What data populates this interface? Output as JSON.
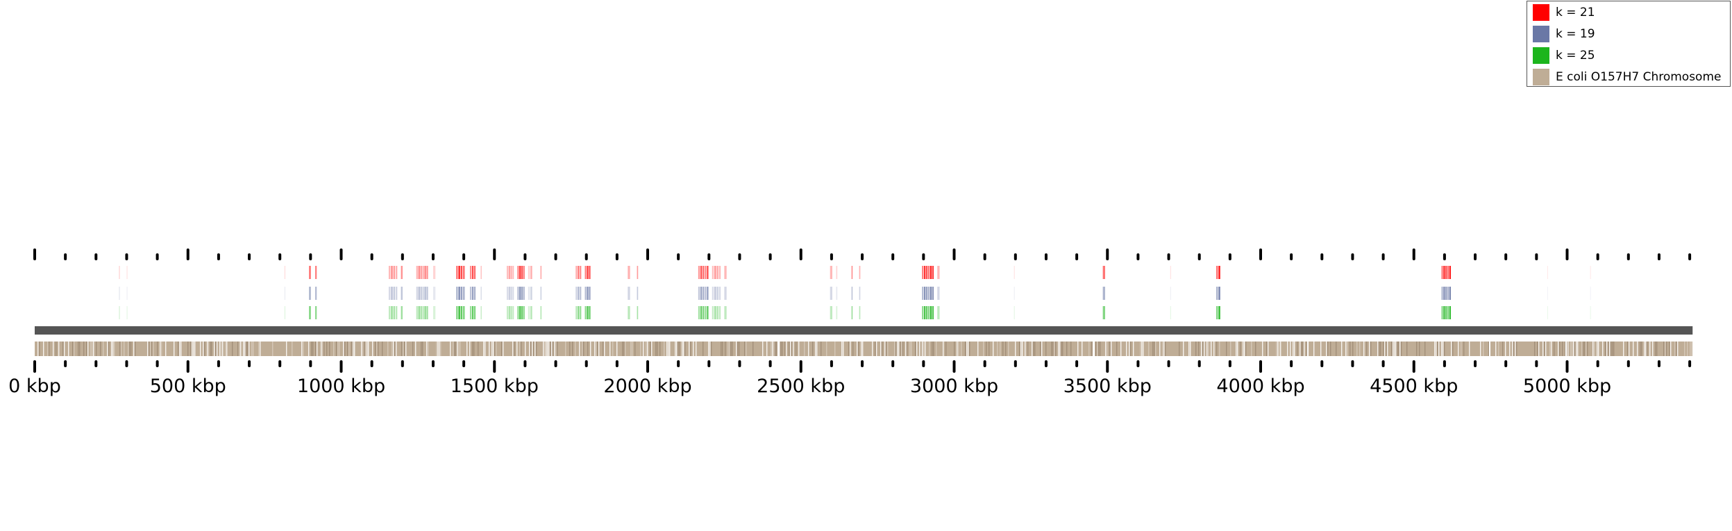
{
  "chart_data": {
    "type": "genome-track",
    "title": "",
    "xlabel": "",
    "ylabel": "",
    "xlim": [
      0,
      5500
    ],
    "axis_unit": "kbp",
    "major_tick_step": 500,
    "minor_tick_step": 100,
    "tick_labels": [
      "0 kbp",
      "500 kbp",
      "1000 kbp",
      "1500 kbp",
      "2000 kbp",
      "2500 kbp",
      "3000 kbp",
      "3500 kbp",
      "4000 kbp",
      "4500 kbp",
      "5000 kbp"
    ],
    "legend_position": "top-right",
    "legend": [
      {
        "label": "k = 21",
        "color": "#ff0000"
      },
      {
        "label": "k = 19",
        "color": "#6a78a6"
      },
      {
        "label": "k = 25",
        "color": "#1db51d"
      },
      {
        "label": "E coli O157H7 Chromosome",
        "color": "#bfad96"
      }
    ],
    "chromosome": {
      "name": "E coli O157H7 Chromosome",
      "start": 0,
      "end": 5500,
      "color": "#bfad96",
      "backbone_color": "#555555"
    },
    "series": [
      {
        "name": "k = 21",
        "color": "#ff0000"
      },
      {
        "name": "k = 19",
        "color": "#6a78a6"
      },
      {
        "name": "k = 25",
        "color": "#1db51d"
      }
    ],
    "features_kbp": [
      {
        "start": 275,
        "end": 276,
        "strength": 0.35
      },
      {
        "start": 300,
        "end": 301,
        "strength": 0.2
      },
      {
        "start": 815,
        "end": 816,
        "strength": 0.25
      },
      {
        "start": 895,
        "end": 903,
        "strength": 1.0
      },
      {
        "start": 915,
        "end": 922,
        "strength": 0.9
      },
      {
        "start": 1155,
        "end": 1185,
        "strength": 0.5
      },
      {
        "start": 1195,
        "end": 1202,
        "strength": 0.8
      },
      {
        "start": 1245,
        "end": 1285,
        "strength": 0.55
      },
      {
        "start": 1300,
        "end": 1310,
        "strength": 0.3
      },
      {
        "start": 1375,
        "end": 1405,
        "strength": 0.95
      },
      {
        "start": 1420,
        "end": 1440,
        "strength": 0.8
      },
      {
        "start": 1455,
        "end": 1460,
        "strength": 0.4
      },
      {
        "start": 1540,
        "end": 1565,
        "strength": 0.45
      },
      {
        "start": 1575,
        "end": 1600,
        "strength": 0.95
      },
      {
        "start": 1610,
        "end": 1625,
        "strength": 0.35
      },
      {
        "start": 1650,
        "end": 1655,
        "strength": 0.6
      },
      {
        "start": 1765,
        "end": 1785,
        "strength": 0.6
      },
      {
        "start": 1795,
        "end": 1815,
        "strength": 0.9
      },
      {
        "start": 1935,
        "end": 1945,
        "strength": 0.55
      },
      {
        "start": 1965,
        "end": 1970,
        "strength": 0.7
      },
      {
        "start": 2165,
        "end": 2200,
        "strength": 0.75
      },
      {
        "start": 2210,
        "end": 2240,
        "strength": 0.45
      },
      {
        "start": 2250,
        "end": 2260,
        "strength": 0.5
      },
      {
        "start": 2595,
        "end": 2605,
        "strength": 0.5
      },
      {
        "start": 2615,
        "end": 2620,
        "strength": 0.3
      },
      {
        "start": 2665,
        "end": 2670,
        "strength": 0.8
      },
      {
        "start": 2690,
        "end": 2695,
        "strength": 0.55
      },
      {
        "start": 2895,
        "end": 2935,
        "strength": 0.95
      },
      {
        "start": 2945,
        "end": 2955,
        "strength": 0.5
      },
      {
        "start": 3195,
        "end": 3197,
        "strength": 0.2
      },
      {
        "start": 3485,
        "end": 3495,
        "strength": 1.0
      },
      {
        "start": 3705,
        "end": 3706,
        "strength": 0.2
      },
      {
        "start": 3855,
        "end": 3870,
        "strength": 1.0
      },
      {
        "start": 4590,
        "end": 4622,
        "strength": 1.0
      },
      {
        "start": 4935,
        "end": 4936,
        "strength": 0.15
      },
      {
        "start": 5075,
        "end": 5076,
        "strength": 0.15
      }
    ]
  }
}
